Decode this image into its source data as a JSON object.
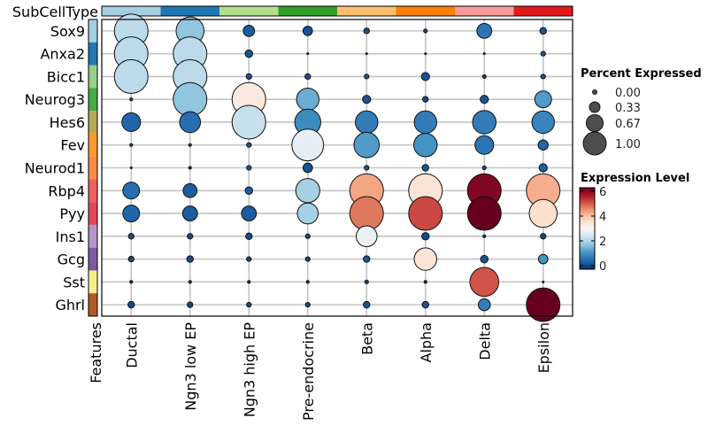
{
  "chart_data": {
    "type": "dotplot",
    "top_annotation_label": "SubCellType",
    "left_annotation_label": "Features",
    "categories": [
      "Ductal",
      "Ngn3 low EP",
      "Ngn3 high EP",
      "Pre-endocrine",
      "Beta",
      "Alpha",
      "Delta",
      "Epsilon"
    ],
    "category_colors": [
      "#a6cee3",
      "#1f78b4",
      "#b2df8a",
      "#33a02c",
      "#fdbf6f",
      "#ff7f00",
      "#fb9a99",
      "#e31a1c"
    ],
    "features": [
      "Sox9",
      "Anxa2",
      "Bicc1",
      "Neurog3",
      "Hes6",
      "Fev",
      "Neurod1",
      "Rbp4",
      "Pyy",
      "Ins1",
      "Gcg",
      "Sst",
      "Ghrl"
    ],
    "feature_colors": [
      "#a6cee3",
      "#1f78b4",
      "#98cf8a",
      "#4aaa44",
      "#b9a954",
      "#fc9a2e",
      "#fb8a48",
      "#ec6262",
      "#e0485a",
      "#b696cc",
      "#7d5aa3",
      "#f6ee8a",
      "#b15928"
    ],
    "percent_expressed": [
      [
        1.0,
        0.82,
        0.3,
        0.24,
        0.12,
        0.06,
        0.41,
        0.15
      ],
      [
        1.0,
        1.0,
        0.18,
        0.0,
        0.0,
        0.0,
        0.0,
        0.09
      ],
      [
        1.0,
        1.0,
        0.12,
        0.12,
        0.09,
        0.2,
        0.06,
        0.09
      ],
      [
        0.03,
        1.0,
        1.0,
        0.65,
        0.2,
        0.12,
        0.2,
        0.47
      ],
      [
        0.53,
        0.6,
        1.0,
        0.76,
        0.65,
        0.65,
        0.68,
        0.65
      ],
      [
        0.03,
        0.03,
        0.09,
        0.94,
        0.74,
        0.68,
        0.53,
        0.26
      ],
      [
        0.0,
        0.03,
        0.09,
        0.24,
        0.09,
        0.15,
        0.06,
        0.2
      ],
      [
        0.47,
        0.38,
        0.18,
        0.7,
        1.0,
        1.0,
        1.0,
        1.0
      ],
      [
        0.47,
        0.41,
        0.41,
        0.6,
        1.0,
        1.0,
        1.0,
        0.82
      ],
      [
        0.12,
        0.12,
        0.15,
        0.09,
        0.6,
        0.18,
        0.03,
        0.12
      ],
      [
        0.12,
        0.15,
        0.09,
        0.09,
        0.15,
        0.65,
        0.18,
        0.24
      ],
      [
        0.03,
        0.03,
        0.03,
        0.03,
        0.06,
        0.03,
        0.85,
        0.0
      ],
      [
        0.15,
        0.12,
        0.09,
        0.09,
        0.15,
        0.15,
        0.32,
        1.0
      ]
    ],
    "expression_level": [
      [
        2.2,
        1.8,
        0.5,
        0.4,
        0.4,
        0.3,
        0.8,
        0.4
      ],
      [
        2.2,
        2.2,
        0.4,
        0.2,
        0.2,
        0.3,
        0.2,
        0.4
      ],
      [
        2.2,
        2.2,
        0.4,
        0.4,
        0.4,
        0.4,
        0.3,
        0.4
      ],
      [
        0.3,
        1.8,
        3.3,
        1.5,
        0.4,
        0.3,
        0.4,
        1.3
      ],
      [
        0.6,
        0.7,
        2.3,
        1.1,
        0.9,
        0.9,
        0.9,
        1.0
      ],
      [
        0.3,
        0.3,
        0.4,
        2.7,
        1.3,
        1.2,
        0.8,
        0.6
      ],
      [
        0.2,
        0.2,
        0.4,
        0.4,
        0.4,
        0.4,
        0.3,
        0.5
      ],
      [
        0.7,
        0.5,
        0.5,
        2.0,
        4.2,
        3.4,
        5.8,
        4.1
      ],
      [
        0.6,
        0.5,
        0.5,
        2.0,
        4.6,
        5.0,
        6.0,
        3.5
      ],
      [
        0.3,
        0.3,
        0.3,
        0.3,
        2.8,
        0.3,
        0.2,
        0.3
      ],
      [
        0.3,
        0.3,
        0.3,
        0.3,
        0.4,
        3.4,
        0.4,
        1.2
      ],
      [
        0.2,
        0.2,
        0.2,
        0.2,
        0.3,
        0.2,
        4.9,
        0.2
      ],
      [
        0.3,
        0.3,
        0.3,
        0.3,
        0.4,
        0.4,
        0.9,
        6.0
      ]
    ],
    "size_legend": {
      "title": "Percent Expressed",
      "values": [
        0,
        0.33,
        0.67,
        1
      ],
      "labels": [
        "0.00",
        "0.33",
        "0.67",
        "1.00"
      ]
    },
    "color_legend": {
      "title": "Expression Level",
      "range": [
        0,
        6
      ],
      "ticks": [
        "0",
        "2",
        "4",
        "6"
      ],
      "palette": "RdBu reversed"
    },
    "grid": true
  }
}
